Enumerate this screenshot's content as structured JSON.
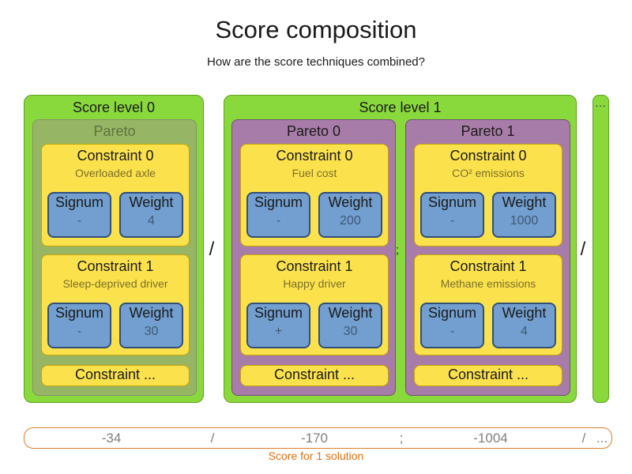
{
  "header": {
    "title": "Score composition",
    "subtitle": "How are the score techniques combined?"
  },
  "labels": {
    "signum": "Signum",
    "weight": "Weight",
    "more": "Constraint ..."
  },
  "levels": [
    {
      "label": "Score level 0",
      "paretos": [
        {
          "label": "Pareto",
          "constraints": [
            {
              "label": "Constraint 0",
              "description": "Overloaded axle",
              "signum": "-",
              "weight": "4"
            },
            {
              "label": "Constraint 1",
              "description": "Sleep-deprived driver",
              "signum": "-",
              "weight": "30"
            }
          ]
        }
      ]
    },
    {
      "label": "Score level 1",
      "paretos": [
        {
          "label": "Pareto 0",
          "constraints": [
            {
              "label": "Constraint 0",
              "description": "Fuel cost",
              "signum": "-",
              "weight": "200"
            },
            {
              "label": "Constraint 1",
              "description": "Happy driver",
              "signum": "+",
              "weight": "30"
            }
          ]
        },
        {
          "label": "Pareto 1",
          "constraints": [
            {
              "label": "Constraint 0",
              "description": "CO² emissions",
              "signum": "-",
              "weight": "1000"
            },
            {
              "label": "Constraint 1",
              "description": "Methane emissions",
              "signum": "-",
              "weight": "4"
            }
          ]
        }
      ]
    }
  ],
  "separators": {
    "level": "/",
    "pareto": ";",
    "trailing": "/"
  },
  "ellipsis": "...",
  "score_bar": {
    "items": [
      "-34",
      "/",
      "-170",
      ";",
      "-1004",
      "/",
      "..."
    ],
    "caption": "Score for 1 solution"
  },
  "colors": {
    "level_green": "#8AD93C",
    "pareto_purple": "#A87CA8",
    "constraint_yellow": "#FBE24D",
    "chip_blue": "#729FCF",
    "score_bar_orange": "#DD7E28",
    "caption_orange": "#E06E0F"
  }
}
